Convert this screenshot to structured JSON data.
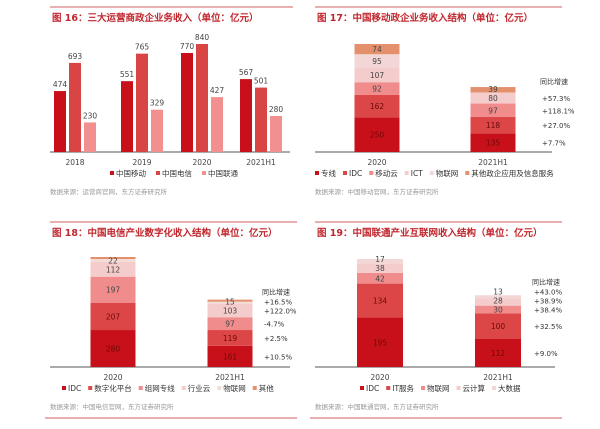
{
  "chart_data": [
    {
      "type": "bar",
      "title": "图 16：三大运营商政企业务收入（单位：亿元）",
      "categories": [
        "2018",
        "2019",
        "2020",
        "2021H1"
      ],
      "series": [
        {
          "name": "中国移动",
          "values": [
            474,
            551,
            770,
            567
          ],
          "color": "#c8101a"
        },
        {
          "name": "中国电信",
          "values": [
            693,
            765,
            840,
            501
          ],
          "color": "#d94545"
        },
        {
          "name": "中国联通",
          "values": [
            230,
            329,
            427,
            280
          ],
          "color": "#f29090"
        }
      ],
      "source": "数据来源：运营商官网，东方证券研究所",
      "legend": "bottom"
    },
    {
      "type": "bar",
      "stacked": true,
      "title": "图 17：中国移动政企业务收入结构（单位：亿元）",
      "categories": [
        "2020",
        "2021H1"
      ],
      "series": [
        {
          "name": "专线",
          "values": [
            250,
            135
          ],
          "color": "#c8101a"
        },
        {
          "name": "IDC",
          "values": [
            162,
            118
          ],
          "color": "#dc4646"
        },
        {
          "name": "移动云",
          "values": [
            92,
            97
          ],
          "color": "#f08c8c"
        },
        {
          "name": "ICT",
          "values": [
            107,
            80
          ],
          "color": "#f5cccc"
        },
        {
          "name": "物联网",
          "values": [
            95,
            null
          ],
          "color": "#f3d6d6"
        },
        {
          "name": "其他政企应用及信息服务",
          "values": [
            74,
            39
          ],
          "color": "#e4906c"
        }
      ],
      "growth_title": "同比增速",
      "growth": [
        "+57.3%",
        "+118.1%",
        "+27.0%",
        "+7.7%"
      ],
      "growth_for": [
        3,
        2,
        1,
        0
      ],
      "source": "数据来源：中国移动官网，东方证券研究所",
      "legend": "bottom"
    },
    {
      "type": "bar",
      "stacked": true,
      "title": "图 18：中国电信产业数字化收入结构（单位：亿元）",
      "categories": [
        "2020",
        "2021H1"
      ],
      "series": [
        {
          "name": "IDC",
          "values": [
            280,
            161
          ],
          "color": "#c8101a"
        },
        {
          "name": "数字化平台",
          "values": [
            207,
            119
          ],
          "color": "#dc4646"
        },
        {
          "name": "组网专线",
          "values": [
            197,
            97
          ],
          "color": "#f08c8c"
        },
        {
          "name": "行业云",
          "values": [
            112,
            103
          ],
          "color": "#f5cccc"
        },
        {
          "name": "物联网",
          "values": [
            22,
            15
          ],
          "color": "#f3dcd6"
        },
        {
          "name": "其他",
          "values": [
            null,
            null
          ],
          "color": "#e4906c"
        }
      ],
      "growth_title": "同比增速",
      "growth": [
        "+16.5%",
        "+122.0%",
        "-4.7%",
        "+2.5%",
        "+10.5%"
      ],
      "growth_for": [
        4,
        3,
        2,
        1,
        0
      ],
      "source": "数据来源：中国电信官网，东方证券研究所",
      "legend": "bottom"
    },
    {
      "type": "bar",
      "stacked": true,
      "title": "图 19：中国联通产业互联网收入结构（单位：亿元）",
      "categories": [
        "2020",
        "2021H1"
      ],
      "series": [
        {
          "name": "IDC",
          "values": [
            195,
            112
          ],
          "color": "#c8101a"
        },
        {
          "name": "IT服务",
          "values": [
            134,
            100
          ],
          "color": "#dc4646"
        },
        {
          "name": "物联网",
          "values": [
            42,
            30
          ],
          "color": "#f08c8c"
        },
        {
          "name": "云计算",
          "values": [
            38,
            28
          ],
          "color": "#f5cccc"
        },
        {
          "name": "大数据",
          "values": [
            17,
            13
          ],
          "color": "#f3d6d6"
        }
      ],
      "growth_title": "同比增速",
      "growth": [
        "+43.0%",
        "+38.9%",
        "+38.4%",
        "+32.5%",
        "+9.0%"
      ],
      "growth_for": [
        4,
        3,
        2,
        1,
        0
      ],
      "source": "数据来源：中国联通官网，东方证券研究所",
      "legend": "bottom"
    }
  ]
}
